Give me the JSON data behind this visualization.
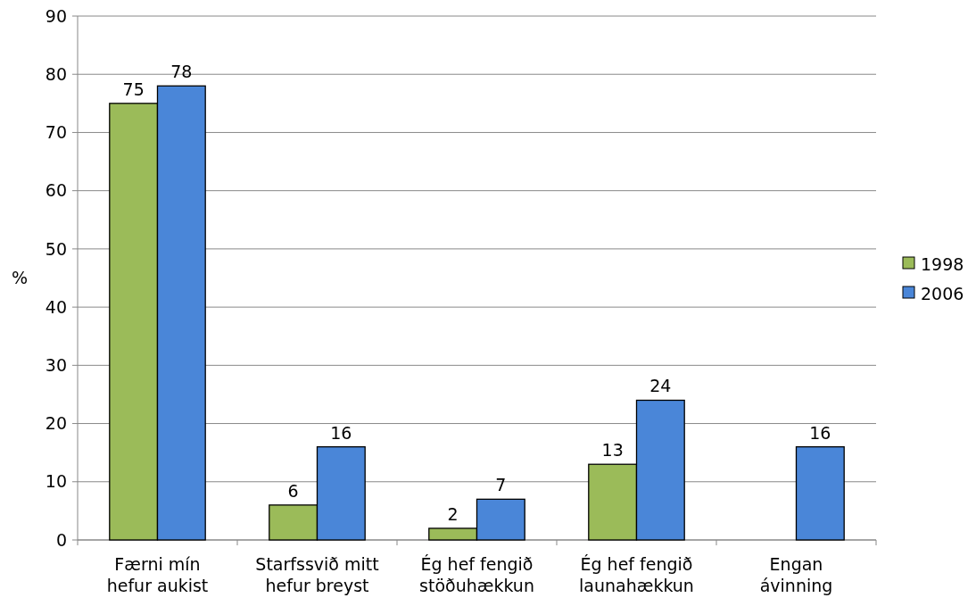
{
  "chart_data": {
    "type": "bar",
    "ylabel": "%",
    "categories": [
      "Færni mín hefur aukist",
      "Starfssvið mitt hefur breyst",
      "Ég hef fengið stöðuhækkun",
      "Ég hef fengið launahækkun",
      "Engan ávinning"
    ],
    "series": [
      {
        "name": "1998",
        "color": "#9bbb59",
        "values": [
          75,
          6,
          2,
          13,
          null
        ]
      },
      {
        "name": "2006",
        "color": "#4a86d8",
        "values": [
          78,
          16,
          7,
          24,
          16
        ]
      }
    ],
    "ylim": [
      0,
      90
    ],
    "yticks": [
      0,
      10,
      20,
      30,
      40,
      50,
      60,
      70,
      80,
      90
    ],
    "grid": "y",
    "legend": "right",
    "data_labels": true
  }
}
